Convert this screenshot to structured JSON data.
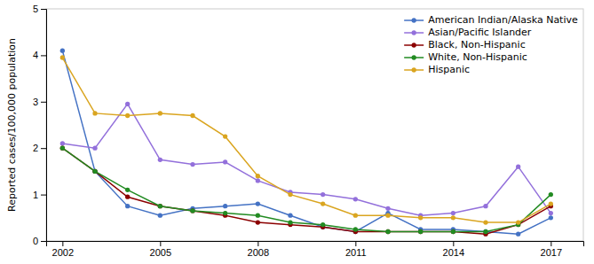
{
  "chart_data": {
    "type": "line",
    "ylabel": "Reported cases/100,000 population",
    "x": [
      2002,
      2003,
      2004,
      2005,
      2006,
      2007,
      2008,
      2009,
      2010,
      2011,
      2012,
      2013,
      2014,
      2015,
      2016,
      2017
    ],
    "series": [
      {
        "name": "American Indian/Alaska Native",
        "color": "#4472C4",
        "marker": "circle",
        "values": [
          4.1,
          1.5,
          0.75,
          0.55,
          0.7,
          0.75,
          0.8,
          0.55,
          0.3,
          0.2,
          0.6,
          0.25,
          0.25,
          0.2,
          0.15,
          0.5
        ]
      },
      {
        "name": "Asian/Pacific Islander",
        "color": "#9370DB",
        "marker": "circle",
        "values": [
          2.1,
          2.0,
          2.95,
          1.75,
          1.65,
          1.7,
          1.3,
          1.05,
          1.0,
          0.9,
          0.7,
          0.55,
          0.6,
          0.75,
          1.6,
          0.6
        ]
      },
      {
        "name": "Black, Non-Hispanic",
        "color": "#8B0000",
        "marker": "circle",
        "values": [
          2.0,
          1.5,
          0.95,
          0.75,
          0.65,
          0.55,
          0.4,
          0.35,
          0.3,
          0.2,
          0.2,
          0.2,
          0.2,
          0.15,
          0.35,
          0.75
        ]
      },
      {
        "name": "White, Non-Hispanic",
        "color": "#228B22",
        "marker": "circle",
        "values": [
          2.0,
          1.5,
          1.1,
          0.75,
          0.65,
          0.6,
          0.55,
          0.4,
          0.35,
          0.25,
          0.2,
          0.2,
          0.2,
          0.2,
          0.35,
          1.0
        ]
      },
      {
        "name": "Hispanic",
        "color": "#DAA520",
        "marker": "circle",
        "values": [
          3.95,
          2.75,
          2.7,
          2.75,
          2.7,
          2.25,
          1.4,
          1.0,
          0.8,
          0.55,
          0.55,
          0.5,
          0.5,
          0.4,
          0.4,
          0.8
        ]
      }
    ],
    "xlim": [
      2001.5,
      2018.0
    ],
    "xticks": [
      2002,
      2005,
      2008,
      2011,
      2014,
      2017
    ],
    "ylim": [
      0,
      5.0
    ],
    "yticks": [
      0,
      1,
      2,
      3,
      4,
      5
    ],
    "grid": false,
    "legend": "upper right"
  }
}
